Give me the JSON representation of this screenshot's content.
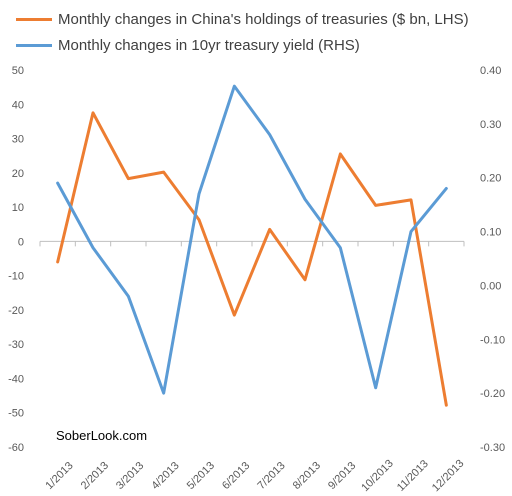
{
  "colors": {
    "holdings": "#ED7D31",
    "yield": "#5B9BD5",
    "axis": "#BFBFBF",
    "text": "#595959"
  },
  "watermark": "SoberLook.com",
  "chart_data": {
    "type": "line",
    "categories": [
      "1/2013",
      "2/2013",
      "3/2013",
      "4/2013",
      "5/2013",
      "6/2013",
      "7/2013",
      "8/2013",
      "9/2013",
      "10/2013",
      "11/2013",
      "12/2013"
    ],
    "series": [
      {
        "name": "Monthly changes in China's holdings of treasuries ($ bn, LHS)",
        "axis": "left",
        "color": "#ED7D31",
        "values": [
          -6,
          37.5,
          18.3,
          20.2,
          6.3,
          -21.5,
          3.5,
          -11.2,
          25.5,
          10.5,
          12.1,
          -47.8
        ]
      },
      {
        "name": "Monthly changes in 10yr treasury yield (RHS)",
        "axis": "right",
        "color": "#5B9BD5",
        "values": [
          0.19,
          0.07,
          -0.02,
          -0.2,
          0.17,
          0.37,
          0.28,
          0.16,
          0.07,
          -0.19,
          0.1,
          0.18
        ]
      }
    ],
    "y_left": {
      "ylim": [
        -60,
        50
      ],
      "ticks": [
        50,
        40,
        30,
        20,
        10,
        0,
        -10,
        -20,
        -30,
        -40,
        -50,
        -60
      ],
      "tick_labels": [
        "50",
        "40",
        "30",
        "20",
        "10",
        "0",
        "-10",
        "-20",
        "-30",
        "-40",
        "-50",
        "-60"
      ]
    },
    "y_right": {
      "ylim": [
        -0.3,
        0.4
      ],
      "ticks": [
        0.4,
        0.3,
        0.2,
        0.1,
        0,
        -0.1,
        -0.2,
        -0.3
      ],
      "tick_labels": [
        "0.40",
        "0.30",
        "0.20",
        "0.10",
        "0.00",
        "-0.10",
        "-0.20",
        "-0.30"
      ]
    },
    "grid": false,
    "legend_position": "top-left"
  }
}
